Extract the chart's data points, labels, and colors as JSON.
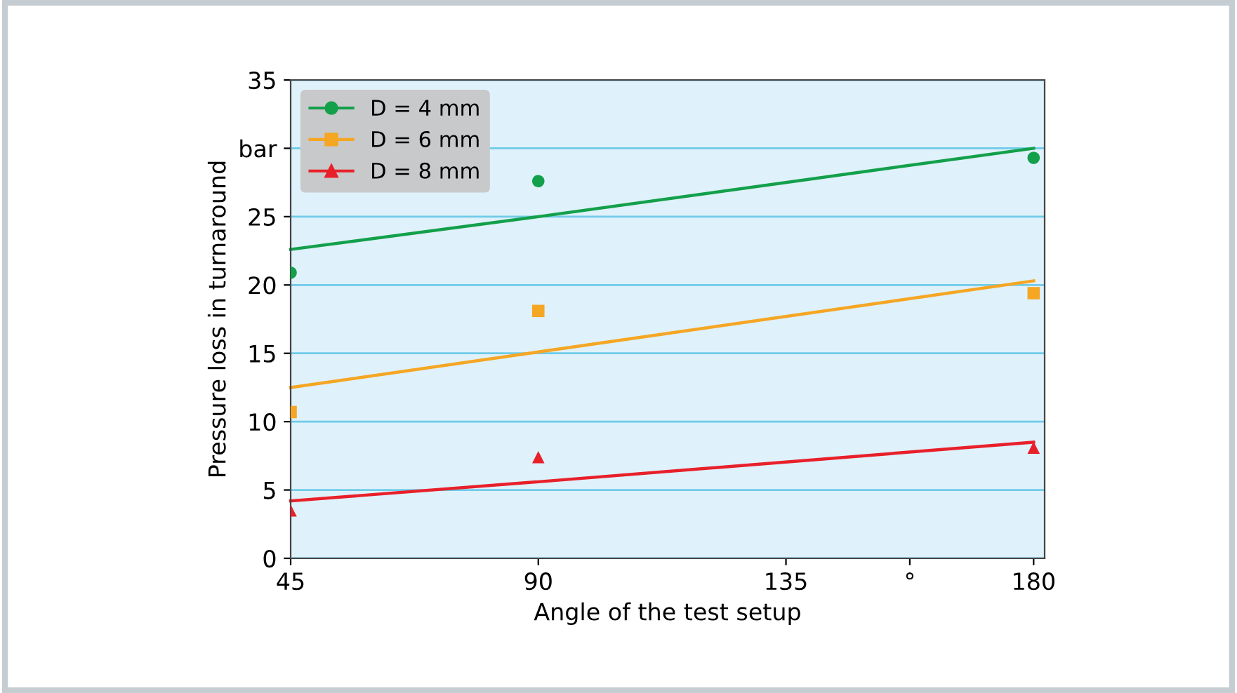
{
  "chart_data": {
    "type": "scatter",
    "xlabel": "Angle of the test setup",
    "ylabel": "Pressure loss in turnaround",
    "x": [
      45,
      90,
      180
    ],
    "series": [
      {
        "name": "D = 4 mm",
        "color": "#13a04a",
        "marker": "circle",
        "values": [
          20.9,
          27.6,
          29.3
        ]
      },
      {
        "name": "D = 6 mm",
        "color": "#f5a623",
        "marker": "square",
        "values": [
          10.7,
          18.1,
          19.4
        ]
      },
      {
        "name": "D = 8 mm",
        "color": "#e8202a",
        "marker": "triangle",
        "values": [
          3.5,
          7.4,
          8.1
        ]
      },
      {
        "type": "line",
        "color": "#13a04a",
        "values": [
          22.6,
          25.0,
          30.0
        ]
      },
      {
        "type": "line",
        "color": "#f5a623",
        "values": [
          12.5,
          15.1,
          20.3
        ]
      },
      {
        "type": "line",
        "color": "#e8202a",
        "values": [
          4.2,
          5.6,
          8.5
        ]
      }
    ],
    "xlim": [
      45,
      182
    ],
    "ylim": [
      0,
      35
    ],
    "xticks": [
      45,
      90,
      135,
      {
        "value": 157.5,
        "label": "°"
      },
      180
    ],
    "yticks": [
      0,
      5,
      10,
      15,
      20,
      25,
      {
        "value": 30,
        "label": "bar"
      },
      35
    ],
    "grid": "y",
    "legend": "top left",
    "line_style": "solid"
  }
}
